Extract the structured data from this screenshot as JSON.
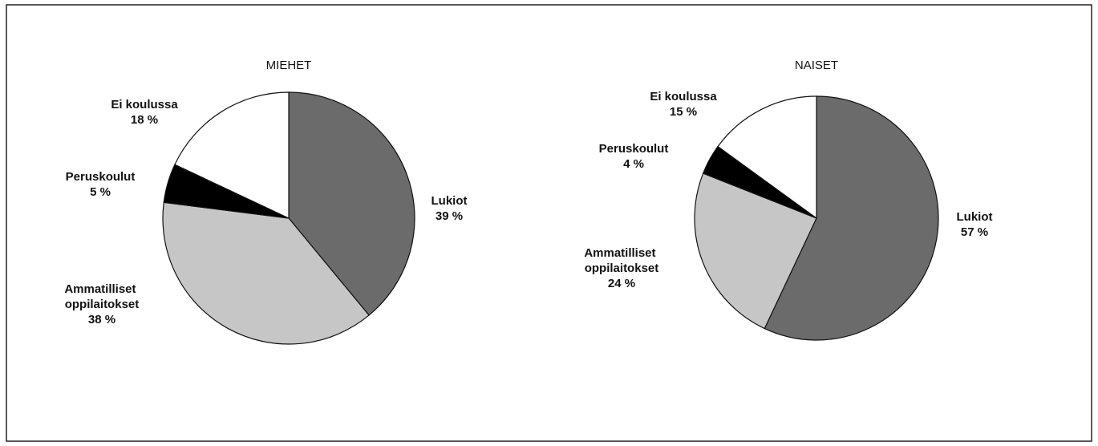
{
  "chart_data": [
    {
      "type": "pie",
      "title": "MIEHET",
      "categories": [
        "Lukiot",
        "Ammatilliset oppilaitokset",
        "Peruskoulut",
        "Ei koulussa"
      ],
      "values": [
        39,
        38,
        5,
        18
      ],
      "value_labels": [
        "39 %",
        "38 %",
        "5 %",
        "18 %"
      ],
      "colors": [
        "#6b6b6b",
        "#c6c6c6",
        "#000000",
        "#ffffff"
      ]
    },
    {
      "type": "pie",
      "title": "NAISET",
      "categories": [
        "Lukiot",
        "Ammatilliset oppilaitokset",
        "Peruskoulut",
        "Ei koulussa"
      ],
      "values": [
        57,
        24,
        4,
        15
      ],
      "value_labels": [
        "57 %",
        "24 %",
        "4 %",
        "15 %"
      ],
      "colors": [
        "#6b6b6b",
        "#c6c6c6",
        "#000000",
        "#ffffff"
      ]
    }
  ]
}
